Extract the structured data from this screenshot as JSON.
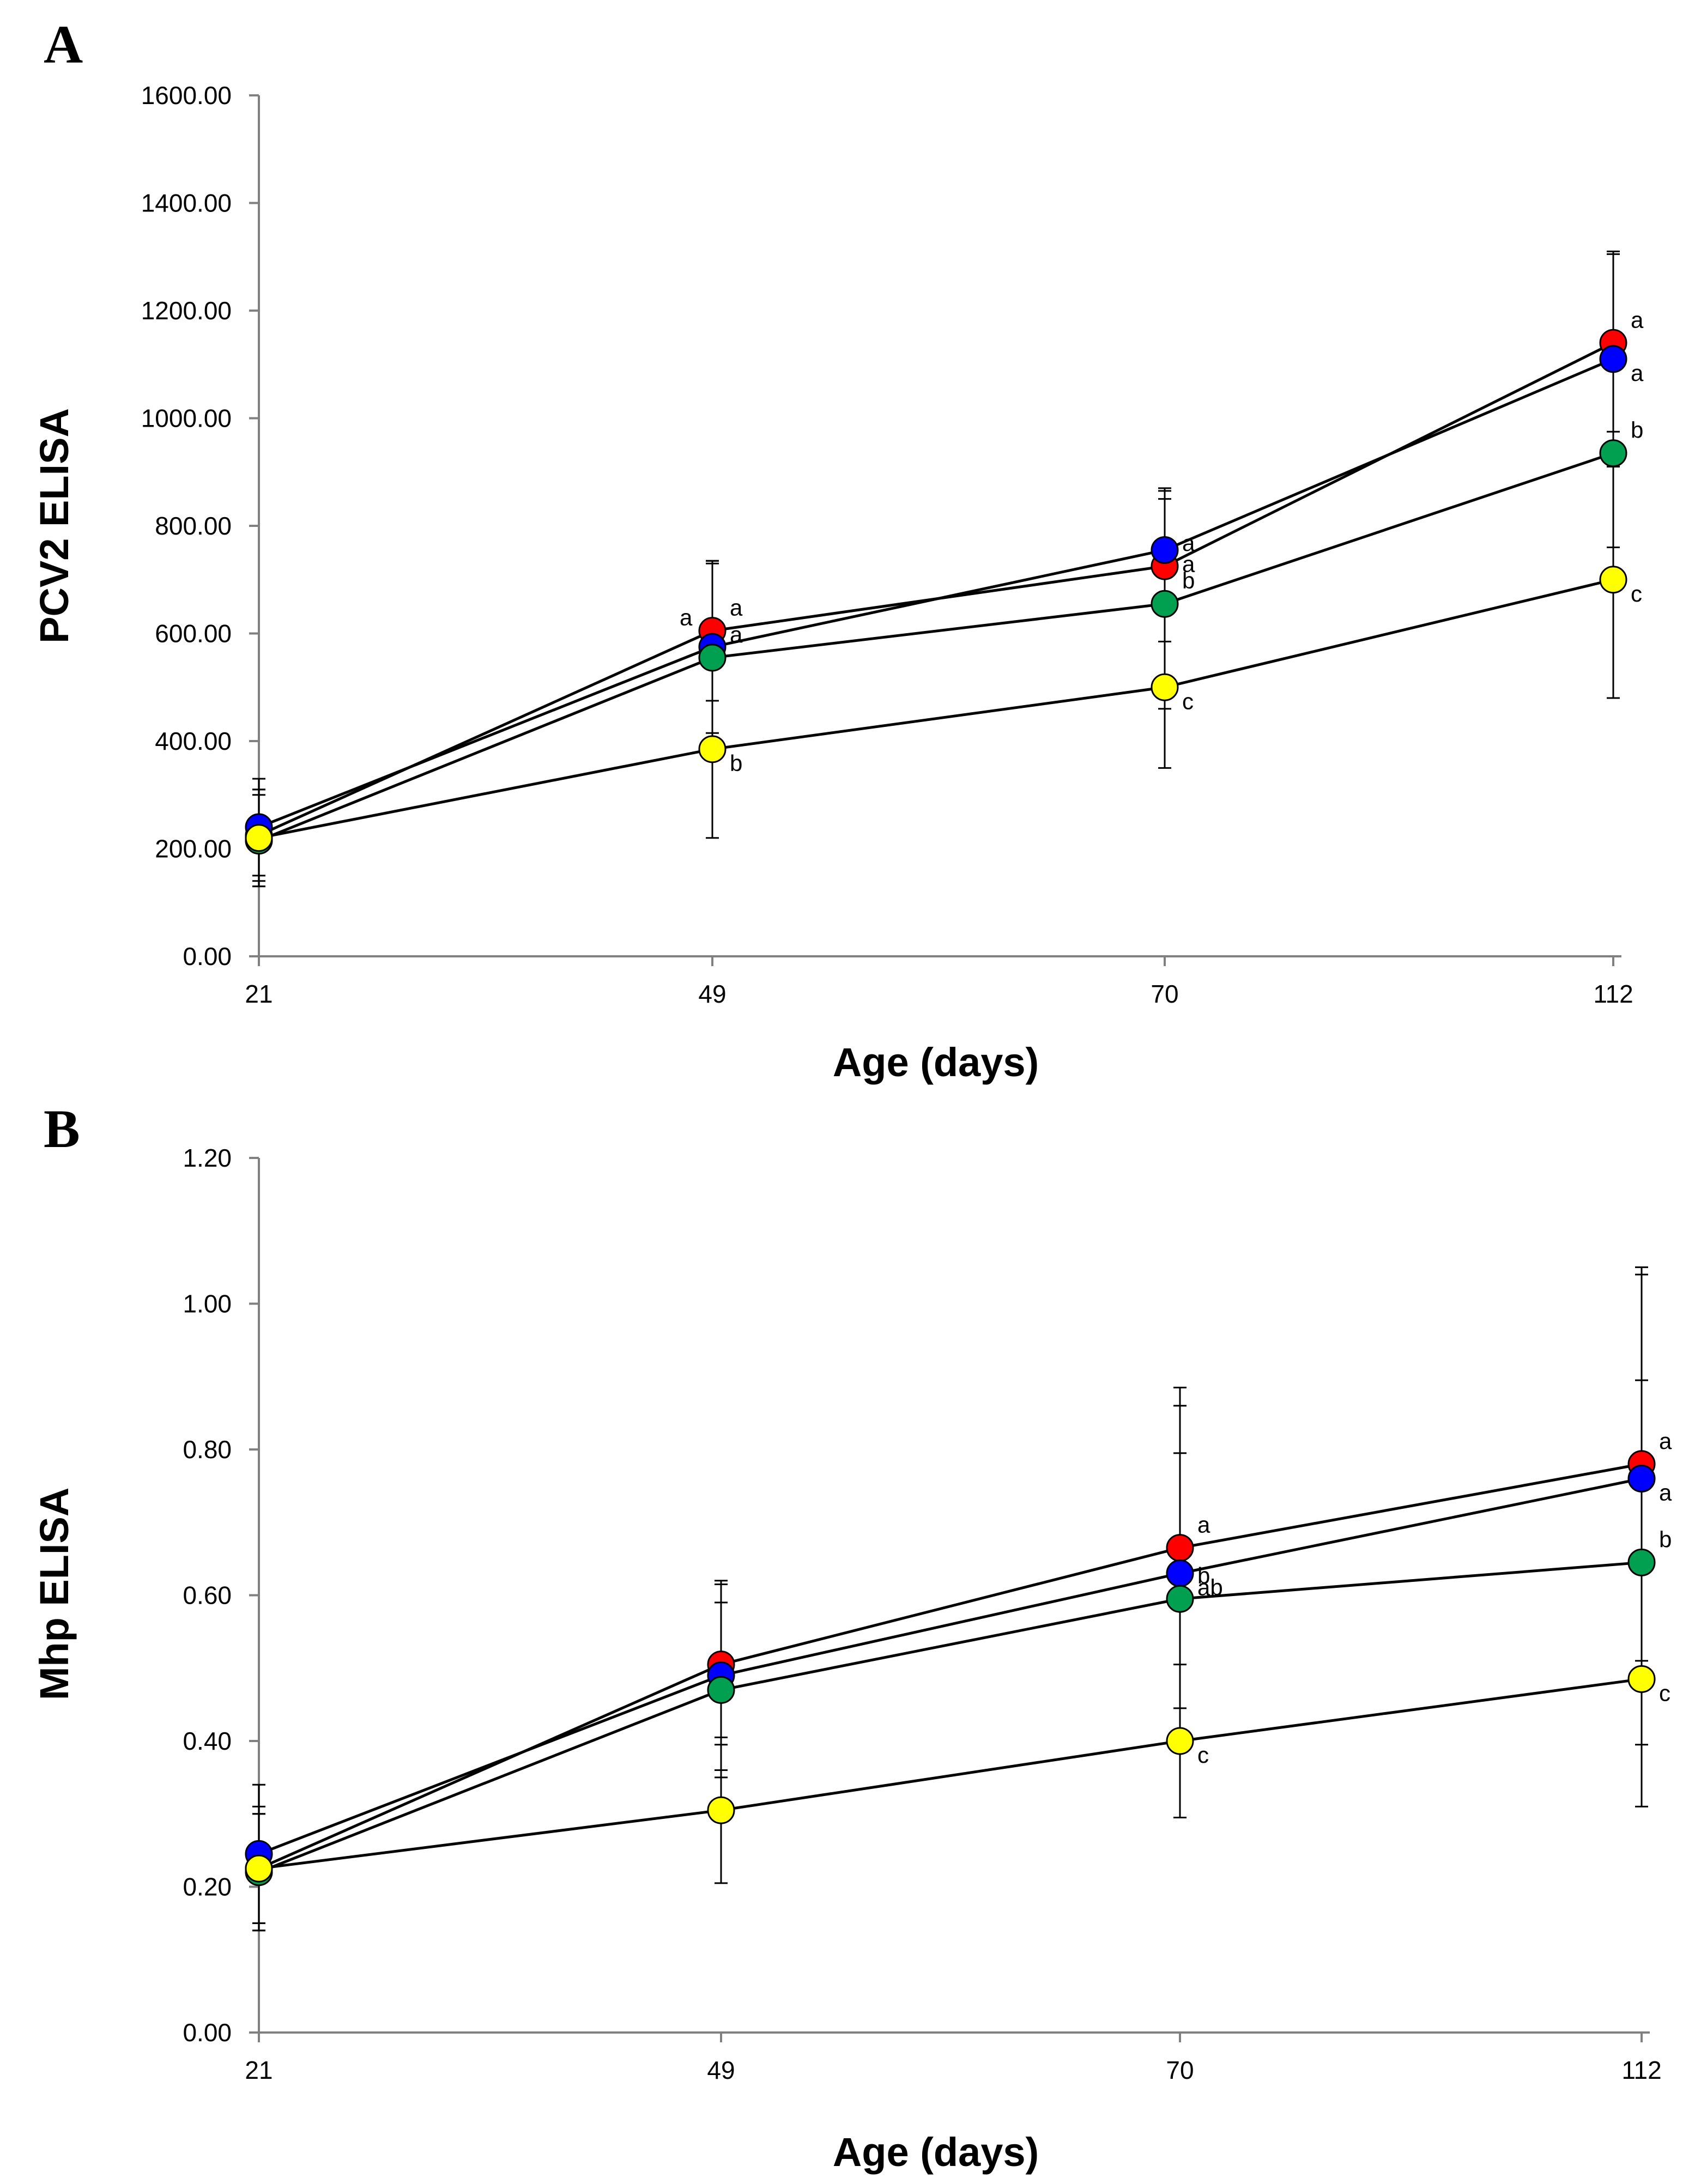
{
  "chart_data": [
    {
      "type": "line",
      "panel_label": "A",
      "xlabel": "Age (days)",
      "ylabel": "PCV2 ELISA",
      "ylim": [
        0,
        1600
      ],
      "yticks": [
        0,
        200,
        400,
        600,
        800,
        1000,
        1200,
        1400,
        1600
      ],
      "ytick_labels": [
        "0.00",
        "200.00",
        "400.00",
        "600.00",
        "800.00",
        "1000.00",
        "1200.00",
        "1400.00",
        "1600.00"
      ],
      "categories": [
        "21",
        "49",
        "70",
        "112"
      ],
      "grid": false,
      "series": [
        {
          "name": "red",
          "color": "#ff0000",
          "values": [
            225,
            605,
            725,
            1140
          ],
          "errors": [
            85,
            130,
            140,
            165
          ],
          "letters": [
            "",
            "a",
            "a",
            "a"
          ]
        },
        {
          "name": "blue",
          "color": "#0000ff",
          "values": [
            240,
            575,
            755,
            1110
          ],
          "errors": [
            90,
            160,
            115,
            200
          ],
          "letters": [
            "",
            "",
            "a",
            "a"
          ]
        },
        {
          "name": "green",
          "color": "#00a050",
          "values": [
            215,
            555,
            655,
            935
          ],
          "errors": [
            85,
            175,
            195,
            175
          ],
          "letters": [
            "",
            "a",
            "b",
            "b"
          ]
        },
        {
          "name": "yellow",
          "color": "#ffff00",
          "values": [
            220,
            385,
            500,
            700
          ],
          "errors": [
            90,
            165,
            150,
            220
          ],
          "letters": [
            "",
            "b",
            "c",
            "c"
          ]
        }
      ],
      "extra_annotations": [
        {
          "category": "49",
          "value": 605,
          "text": "a",
          "side": "left"
        }
      ]
    },
    {
      "type": "line",
      "panel_label": "B",
      "xlabel": "Age (days)",
      "ylabel": "Mhp ELISA",
      "ylim": [
        0,
        1.2
      ],
      "yticks": [
        0,
        0.2,
        0.4,
        0.6,
        0.8,
        1.0,
        1.2
      ],
      "ytick_labels": [
        "0.00",
        "0.20",
        "0.40",
        "0.60",
        "0.80",
        "1.00",
        "1.20"
      ],
      "categories": [
        "21",
        "49",
        "70",
        "112"
      ],
      "grid": false,
      "series": [
        {
          "name": "red",
          "color": "#ff0000",
          "values": [
            0.225,
            0.505,
            0.665,
            0.78
          ],
          "errors": [
            0.085,
            0.11,
            0.22,
            0.27
          ],
          "letters": [
            "",
            "",
            "a",
            "a"
          ]
        },
        {
          "name": "blue",
          "color": "#0000ff",
          "values": [
            0.245,
            0.49,
            0.63,
            0.76
          ],
          "errors": [
            0.095,
            0.13,
            0.23,
            0.28
          ],
          "letters": [
            "",
            "",
            "ab",
            "a"
          ]
        },
        {
          "name": "green",
          "color": "#00a050",
          "values": [
            0.22,
            0.47,
            0.595,
            0.645
          ],
          "errors": [
            0.08,
            0.12,
            0.2,
            0.25
          ],
          "letters": [
            "",
            "",
            "b",
            "b"
          ]
        },
        {
          "name": "yellow",
          "color": "#ffff00",
          "values": [
            0.225,
            0.305,
            0.4,
            0.485
          ],
          "errors": [
            0.075,
            0.1,
            0.105,
            0.175
          ],
          "letters": [
            "",
            "",
            "c",
            "c"
          ]
        }
      ],
      "extra_annotations": []
    }
  ]
}
